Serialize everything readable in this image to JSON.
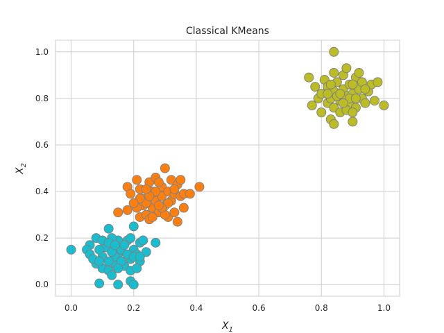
{
  "chart_data": {
    "type": "scatter",
    "title": "Classical KMeans",
    "xlabel": "X",
    "xlabel_sub": "1",
    "ylabel": "X",
    "ylabel_sub": "2",
    "xlim": [
      -0.05,
      1.05
    ],
    "ylim": [
      -0.05,
      1.05
    ],
    "xticks": [
      0.0,
      0.2,
      0.4,
      0.6,
      0.8,
      1.0
    ],
    "yticks": [
      0.0,
      0.2,
      0.4,
      0.6,
      0.8,
      1.0
    ],
    "xtick_labels": [
      "0.0",
      "0.2",
      "0.4",
      "0.6",
      "0.8",
      "1.0"
    ],
    "ytick_labels": [
      "0.0",
      "0.2",
      "0.4",
      "0.6",
      "0.8",
      "1.0"
    ],
    "grid": true,
    "series": [
      {
        "color": "#17becf",
        "points": [
          [
            0.0,
            0.15
          ],
          [
            0.09,
            0.005
          ],
          [
            0.15,
            0.0
          ],
          [
            0.19,
            0.015
          ],
          [
            0.2,
            0.0
          ],
          [
            0.27,
            0.18
          ],
          [
            0.2,
            0.25
          ],
          [
            0.12,
            0.24
          ],
          [
            0.06,
            0.17
          ],
          [
            0.05,
            0.15
          ],
          [
            0.06,
            0.13
          ],
          [
            0.08,
            0.2
          ],
          [
            0.08,
            0.09
          ],
          [
            0.1,
            0.07
          ],
          [
            0.1,
            0.12
          ],
          [
            0.12,
            0.06
          ],
          [
            0.13,
            0.04
          ],
          [
            0.14,
            0.09
          ],
          [
            0.15,
            0.13
          ],
          [
            0.15,
            0.19
          ],
          [
            0.16,
            0.15
          ],
          [
            0.17,
            0.08
          ],
          [
            0.18,
            0.19
          ],
          [
            0.19,
            0.11
          ],
          [
            0.19,
            0.06
          ],
          [
            0.2,
            0.15
          ],
          [
            0.21,
            0.13
          ],
          [
            0.22,
            0.18
          ],
          [
            0.22,
            0.1
          ],
          [
            0.23,
            0.19
          ],
          [
            0.24,
            0.14
          ],
          [
            0.11,
            0.16
          ],
          [
            0.13,
            0.2
          ],
          [
            0.14,
            0.12
          ],
          [
            0.17,
            0.17
          ],
          [
            0.09,
            0.15
          ],
          [
            0.12,
            0.1
          ],
          [
            0.18,
            0.13
          ],
          [
            0.16,
            0.1
          ],
          [
            0.21,
            0.07
          ],
          [
            0.1,
            0.19
          ],
          [
            0.07,
            0.11
          ],
          [
            0.13,
            0.14
          ],
          [
            0.19,
            0.2
          ],
          [
            0.15,
            0.07
          ],
          [
            0.09,
            0.1
          ],
          [
            0.2,
            0.12
          ],
          [
            0.12,
            0.18
          ],
          [
            0.22,
            0.12
          ],
          [
            0.14,
            0.17
          ]
        ]
      },
      {
        "color": "#ff7f0e",
        "points": [
          [
            0.15,
            0.31
          ],
          [
            0.18,
            0.32
          ],
          [
            0.18,
            0.42
          ],
          [
            0.19,
            0.39
          ],
          [
            0.21,
            0.45
          ],
          [
            0.22,
            0.29
          ],
          [
            0.22,
            0.41
          ],
          [
            0.23,
            0.34
          ],
          [
            0.23,
            0.37
          ],
          [
            0.24,
            0.3
          ],
          [
            0.25,
            0.28
          ],
          [
            0.25,
            0.44
          ],
          [
            0.26,
            0.33
          ],
          [
            0.26,
            0.4
          ],
          [
            0.27,
            0.36
          ],
          [
            0.27,
            0.46
          ],
          [
            0.28,
            0.31
          ],
          [
            0.29,
            0.38
          ],
          [
            0.29,
            0.42
          ],
          [
            0.3,
            0.5
          ],
          [
            0.3,
            0.34
          ],
          [
            0.31,
            0.29
          ],
          [
            0.31,
            0.4
          ],
          [
            0.32,
            0.36
          ],
          [
            0.32,
            0.45
          ],
          [
            0.33,
            0.31
          ],
          [
            0.33,
            0.39
          ],
          [
            0.34,
            0.27
          ],
          [
            0.34,
            0.43
          ],
          [
            0.35,
            0.38
          ],
          [
            0.36,
            0.33
          ],
          [
            0.36,
            0.39
          ],
          [
            0.38,
            0.39
          ],
          [
            0.41,
            0.42
          ],
          [
            0.21,
            0.33
          ],
          [
            0.24,
            0.35
          ],
          [
            0.27,
            0.4
          ],
          [
            0.3,
            0.3
          ],
          [
            0.28,
            0.44
          ],
          [
            0.25,
            0.38
          ],
          [
            0.31,
            0.35
          ],
          [
            0.22,
            0.37
          ],
          [
            0.29,
            0.33
          ],
          [
            0.33,
            0.41
          ],
          [
            0.26,
            0.29
          ],
          [
            0.2,
            0.35
          ],
          [
            0.35,
            0.45
          ],
          [
            0.24,
            0.41
          ],
          [
            0.28,
            0.34
          ]
        ]
      },
      {
        "color": "#bcbd22",
        "points": [
          [
            0.84,
            1.0
          ],
          [
            0.76,
            0.89
          ],
          [
            0.77,
            0.77
          ],
          [
            0.78,
            0.85
          ],
          [
            0.79,
            0.8
          ],
          [
            0.8,
            0.74
          ],
          [
            0.8,
            0.82
          ],
          [
            0.81,
            0.88
          ],
          [
            0.82,
            0.78
          ],
          [
            0.82,
            0.85
          ],
          [
            0.83,
            0.71
          ],
          [
            0.83,
            0.8
          ],
          [
            0.84,
            0.69
          ],
          [
            0.84,
            0.76
          ],
          [
            0.84,
            0.83
          ],
          [
            0.84,
            0.91
          ],
          [
            0.85,
            0.87
          ],
          [
            0.86,
            0.79
          ],
          [
            0.86,
            0.74
          ],
          [
            0.87,
            0.84
          ],
          [
            0.87,
            0.9
          ],
          [
            0.88,
            0.93
          ],
          [
            0.88,
            0.81
          ],
          [
            0.89,
            0.77
          ],
          [
            0.89,
            0.86
          ],
          [
            0.9,
            0.7
          ],
          [
            0.9,
            0.82
          ],
          [
            0.91,
            0.89
          ],
          [
            0.91,
            0.76
          ],
          [
            0.92,
            0.84
          ],
          [
            0.92,
            0.91
          ],
          [
            0.93,
            0.8
          ],
          [
            0.93,
            0.87
          ],
          [
            0.94,
            0.78
          ],
          [
            0.95,
            0.83
          ],
          [
            0.96,
            0.86
          ],
          [
            0.97,
            0.79
          ],
          [
            0.98,
            0.87
          ],
          [
            1.0,
            0.77
          ],
          [
            0.85,
            0.81
          ],
          [
            0.88,
            0.75
          ],
          [
            0.9,
            0.86
          ],
          [
            0.86,
            0.82
          ],
          [
            0.89,
            0.8
          ],
          [
            0.83,
            0.86
          ],
          [
            0.91,
            0.8
          ],
          [
            0.87,
            0.78
          ],
          [
            0.94,
            0.84
          ],
          [
            0.82,
            0.82
          ],
          [
            0.9,
            0.74
          ]
        ]
      }
    ]
  }
}
